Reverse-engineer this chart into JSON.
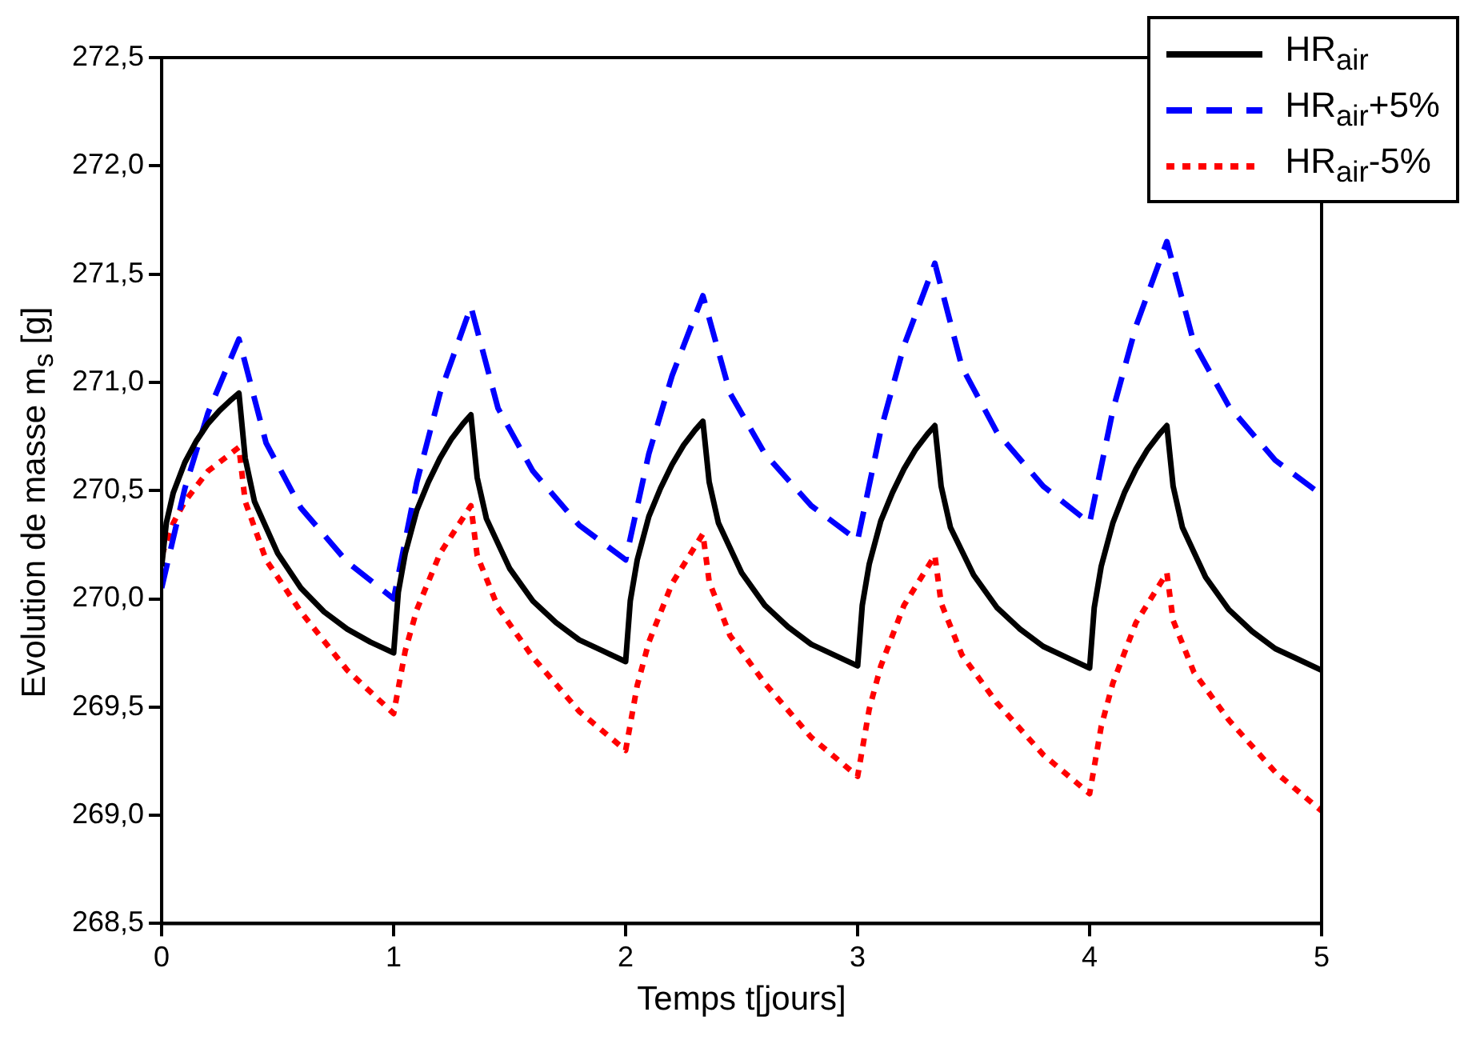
{
  "chart_data": {
    "type": "line",
    "xlabel": "Temps t[jours]",
    "ylabel": "Evolution de masse m$_{s}$ [g]",
    "xlim": [
      0,
      5
    ],
    "xticks": [
      0,
      1,
      2,
      3,
      4,
      5
    ],
    "ylim": [
      268.5,
      272.5
    ],
    "yticks": [
      {
        "value": 268.5,
        "label": "268,5"
      },
      {
        "value": 269,
        "label": "269,0"
      },
      {
        "value": 269.5,
        "label": "269,5"
      },
      {
        "value": 270,
        "label": "270,0"
      },
      {
        "value": 270.5,
        "label": "270,5"
      },
      {
        "value": 271,
        "label": "271,0"
      },
      {
        "value": 271.5,
        "label": "271,5"
      },
      {
        "value": 272,
        "label": "272,0"
      },
      {
        "value": 272.5,
        "label": "272,5"
      }
    ],
    "legend": "top right",
    "marker": "none",
    "series": [
      {
        "name": "HR$_{air}$",
        "color": "#000000",
        "line_style": "solid",
        "x": [
          0,
          0.02,
          0.05,
          0.1,
          0.15,
          0.2,
          0.25,
          0.3,
          0.333,
          0.36,
          0.4,
          0.5,
          0.6,
          0.7,
          0.8,
          0.9,
          1,
          1.02,
          1.05,
          1.1,
          1.15,
          1.2,
          1.25,
          1.3,
          1.333,
          1.36,
          1.4,
          1.5,
          1.6,
          1.7,
          1.8,
          1.9,
          2,
          2.02,
          2.05,
          2.1,
          2.15,
          2.2,
          2.25,
          2.3,
          2.333,
          2.36,
          2.4,
          2.5,
          2.6,
          2.7,
          2.8,
          2.9,
          3,
          3.02,
          3.05,
          3.1,
          3.15,
          3.2,
          3.25,
          3.3,
          3.333,
          3.36,
          3.4,
          3.5,
          3.6,
          3.7,
          3.8,
          3.9,
          4,
          4.02,
          4.05,
          4.1,
          4.15,
          4.2,
          4.25,
          4.3,
          4.333,
          4.36,
          4.4,
          4.5,
          4.6,
          4.7,
          4.8,
          4.9,
          5
        ],
        "values": [
          270.15,
          270.35,
          270.49,
          270.63,
          270.73,
          270.81,
          270.87,
          270.92,
          270.95,
          270.65,
          270.45,
          270.21,
          270.05,
          269.94,
          269.86,
          269.8,
          269.75,
          270.03,
          270.21,
          270.41,
          270.54,
          270.65,
          270.74,
          270.81,
          270.85,
          270.56,
          270.37,
          270.14,
          269.99,
          269.89,
          269.81,
          269.76,
          269.71,
          269.99,
          270.18,
          270.38,
          270.51,
          270.62,
          270.71,
          270.78,
          270.82,
          270.54,
          270.35,
          270.12,
          269.97,
          269.87,
          269.79,
          269.74,
          269.69,
          269.97,
          270.16,
          270.36,
          270.49,
          270.6,
          270.69,
          270.76,
          270.8,
          270.52,
          270.33,
          270.11,
          269.96,
          269.86,
          269.78,
          269.73,
          269.68,
          269.96,
          270.15,
          270.35,
          270.49,
          270.6,
          270.69,
          270.76,
          270.8,
          270.52,
          270.33,
          270.1,
          269.95,
          269.85,
          269.77,
          269.72,
          269.67
        ]
      },
      {
        "name": "HR$_{air}$+5%",
        "color": "#0000ff",
        "line_style": "dashed",
        "x": [
          0,
          0.1,
          0.2,
          0.333,
          0.45,
          0.6,
          0.8,
          1,
          1.1,
          1.2,
          1.333,
          1.45,
          1.6,
          1.8,
          2,
          2.1,
          2.2,
          2.333,
          2.45,
          2.6,
          2.8,
          3,
          3.1,
          3.2,
          3.333,
          3.45,
          3.6,
          3.8,
          4,
          4.1,
          4.2,
          4.333,
          4.45,
          4.6,
          4.8,
          5
        ],
        "values": [
          270.05,
          270.51,
          270.86,
          271.2,
          270.72,
          270.42,
          270.17,
          270.0,
          270.54,
          270.95,
          271.35,
          270.88,
          270.59,
          270.34,
          270.18,
          270.67,
          271.03,
          271.4,
          270.95,
          270.67,
          270.43,
          270.27,
          270.78,
          271.17,
          271.55,
          271.07,
          270.77,
          270.52,
          270.35,
          270.87,
          271.26,
          271.65,
          271.18,
          270.89,
          270.64,
          270.48
        ]
      },
      {
        "name": "HR$_{air}$-5%",
        "color": "#ff0000",
        "line_style": "dotted",
        "x": [
          0,
          0.05,
          0.1,
          0.2,
          0.333,
          0.36,
          0.45,
          0.6,
          0.8,
          1,
          1.05,
          1.1,
          1.2,
          1.333,
          1.36,
          1.45,
          1.6,
          1.8,
          2,
          2.05,
          2.1,
          2.2,
          2.333,
          2.36,
          2.45,
          2.6,
          2.8,
          3,
          3.05,
          3.1,
          3.2,
          3.333,
          3.36,
          3.45,
          3.6,
          3.8,
          4,
          4.05,
          4.1,
          4.2,
          4.333,
          4.36,
          4.45,
          4.6,
          4.8,
          5
        ],
        "values": [
          270.2,
          270.35,
          270.45,
          270.59,
          270.7,
          270.45,
          270.18,
          269.94,
          269.67,
          269.47,
          269.76,
          269.95,
          270.21,
          270.43,
          270.2,
          269.96,
          269.73,
          269.48,
          269.3,
          269.6,
          269.8,
          270.07,
          270.3,
          270.08,
          269.83,
          269.61,
          269.36,
          269.18,
          269.49,
          269.69,
          269.97,
          270.2,
          269.98,
          269.74,
          269.52,
          269.28,
          269.1,
          269.41,
          269.61,
          269.89,
          270.12,
          269.9,
          269.66,
          269.44,
          269.2,
          269.02
        ]
      }
    ]
  }
}
